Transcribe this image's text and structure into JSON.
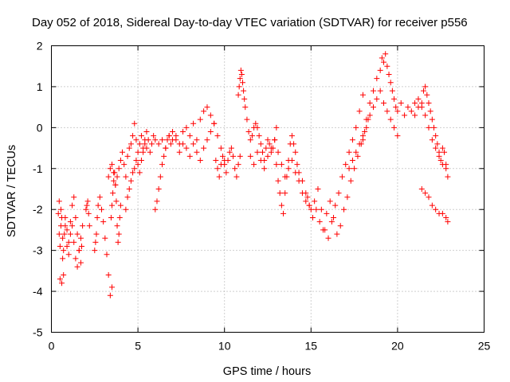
{
  "chart_data": {
    "type": "scatter",
    "title": "Day 052 of 2018, Sidereal Day-to-day VTEC variation (SDTVAR) for receiver p556",
    "xlabel": "GPS time / hours",
    "ylabel": "SDTVAR / TECUs",
    "xlim": [
      0,
      25
    ],
    "ylim": [
      -5,
      2
    ],
    "xticks": [
      "0",
      "5",
      "10",
      "15",
      "20",
      "25"
    ],
    "yticks": [
      "-5",
      "-4",
      "-3",
      "-2",
      "-1",
      "0",
      "1",
      "2"
    ],
    "grid": true,
    "marker": "plus",
    "marker_color": "#ff0000",
    "series": [
      {
        "name": "SDTVAR",
        "x": [
          0.4,
          0.45,
          0.5,
          0.55,
          0.6,
          0.65,
          0.7,
          0.75,
          0.8,
          0.9,
          1.0,
          1.1,
          1.2,
          1.3,
          1.4,
          1.5,
          1.6,
          1.7,
          1.75,
          1.8,
          0.5,
          0.6,
          0.7,
          0.8,
          0.9,
          1.0,
          1.1,
          1.2,
          1.3,
          1.4,
          1.5,
          1.6,
          1.7,
          0.45,
          0.55,
          0.65,
          2.0,
          2.05,
          2.1,
          2.15,
          2.2,
          2.5,
          2.55,
          2.6,
          2.65,
          2.7,
          2.8,
          2.9,
          3.0,
          3.1,
          3.2,
          3.3,
          3.4,
          3.5,
          3.45,
          3.5,
          3.55,
          3.6,
          3.65,
          3.7,
          3.75,
          3.8,
          3.85,
          3.9,
          3.95,
          4.0,
          3.3,
          3.4,
          3.5,
          3.6,
          3.7,
          3.8,
          3.9,
          4.0,
          4.1,
          4.2,
          4.3,
          4.4,
          4.5,
          4.6,
          4.7,
          4.8,
          4.9,
          5.0,
          5.1,
          5.2,
          5.3,
          5.4,
          5.5,
          4.3,
          4.4,
          4.5,
          4.6,
          4.7,
          4.8,
          4.9,
          5.0,
          5.1,
          5.2,
          5.3,
          5.4,
          5.5,
          5.6,
          5.7,
          5.8,
          5.9,
          6.0,
          6.0,
          6.1,
          6.2,
          6.3,
          6.4,
          6.5,
          6.6,
          6.7,
          6.8,
          6.9,
          7.0,
          7.2,
          7.4,
          7.6,
          7.8,
          8.0,
          8.2,
          8.4,
          8.6,
          8.8,
          9.0,
          9.2,
          9.4,
          9.6,
          9.8,
          10.0,
          6.2,
          6.4,
          6.6,
          6.8,
          7.0,
          7.2,
          7.4,
          7.6,
          7.8,
          8.0,
          8.2,
          8.4,
          8.6,
          8.8,
          9.0,
          9.2,
          9.4,
          9.5,
          9.6,
          9.7,
          9.8,
          9.9,
          10.0,
          10.1,
          10.2,
          10.3,
          10.4,
          10.5,
          10.6,
          10.7,
          10.8,
          10.9,
          10.8,
          10.85,
          10.9,
          10.95,
          11.0,
          11.05,
          11.1,
          11.15,
          11.2,
          11.3,
          11.4,
          11.5,
          11.6,
          11.7,
          11.8,
          11.9,
          12.0,
          12.1,
          12.2,
          12.3,
          12.4,
          12.5,
          12.6,
          12.7,
          12.8,
          12.9,
          13.0,
          11.5,
          11.7,
          11.9,
          12.1,
          12.3,
          12.5,
          12.7,
          12.9,
          13.1,
          13.3,
          13.5,
          13.7,
          13.9,
          14.1,
          14.3,
          14.5,
          14.7,
          14.9,
          13.0,
          13.1,
          13.2,
          13.3,
          13.4,
          13.5,
          13.6,
          13.7,
          13.8,
          13.9,
          14.0,
          14.1,
          14.2,
          14.3,
          14.5,
          14.7,
          14.9,
          15.1,
          15.3,
          15.5,
          15.7,
          15.9,
          16.1,
          16.3,
          16.5,
          16.7,
          16.9,
          17.1,
          17.3,
          17.5,
          17.7,
          17.9,
          18.1,
          18.3,
          14.8,
          15.0,
          15.2,
          15.4,
          15.6,
          15.8,
          16.0,
          16.2,
          16.4,
          16.6,
          16.8,
          17.0,
          17.2,
          17.4,
          17.6,
          17.8,
          18.0,
          17.2,
          17.4,
          17.6,
          17.8,
          18.0,
          18.2,
          18.4,
          18.6,
          18.8,
          19.0,
          19.2,
          19.4,
          19.6,
          19.8,
          20.0,
          18.0,
          18.2,
          18.4,
          18.6,
          18.8,
          19.0,
          19.1,
          19.2,
          19.3,
          19.4,
          19.5,
          19.6,
          19.7,
          19.8,
          19.9,
          20.0,
          20.2,
          20.4,
          20.6,
          20.8,
          21.0,
          21.2,
          21.4,
          21.6,
          21.8,
          22.0,
          22.2,
          22.4,
          22.6,
          22.8,
          22.9,
          21.0,
          21.2,
          21.4,
          21.5,
          21.6,
          21.7,
          21.8,
          21.9,
          22.0,
          22.1,
          22.2,
          22.3,
          22.4,
          22.5,
          22.6,
          22.7,
          22.8,
          21.4,
          21.6,
          21.8,
          22.0,
          22.2,
          22.4,
          22.6,
          22.8,
          22.9
        ],
        "y": [
          -2.1,
          -2.6,
          -2.9,
          -2.4,
          -2.2,
          -2.7,
          -3.0,
          -2.6,
          -2.2,
          -2.5,
          -2.8,
          -2.3,
          -1.9,
          -1.7,
          -2.2,
          -2.6,
          -3.0,
          -3.3,
          -2.9,
          -2.4,
          -3.7,
          -3.8,
          -3.6,
          -2.4,
          -2.9,
          -3.1,
          -2.6,
          -2.4,
          -2.8,
          -3.2,
          -3.4,
          -3.0,
          -2.7,
          -1.8,
          -2.0,
          -3.2,
          -2.0,
          -1.9,
          -1.8,
          -2.1,
          -2.4,
          -3.0,
          -2.8,
          -2.6,
          -2.2,
          -1.9,
          -1.7,
          -2.0,
          -2.3,
          -2.7,
          -3.1,
          -3.6,
          -4.1,
          -3.9,
          -2.2,
          -1.9,
          -1.6,
          -1.3,
          -1.1,
          -1.4,
          -1.8,
          -2.4,
          -2.8,
          -2.6,
          -2.2,
          -1.9,
          -1.2,
          -1.0,
          -0.9,
          -1.1,
          -1.4,
          -1.2,
          -1.0,
          -0.8,
          -0.6,
          -0.9,
          -1.2,
          -0.7,
          -0.5,
          -0.4,
          -0.2,
          0.1,
          -0.3,
          -0.6,
          -0.4,
          -0.2,
          -0.5,
          -0.3,
          -0.1,
          -2.0,
          -1.7,
          -1.5,
          -1.3,
          -1.1,
          -1.0,
          -0.8,
          -0.9,
          -1.1,
          -0.8,
          -0.6,
          -0.4,
          -0.5,
          -0.3,
          -0.6,
          -0.4,
          -0.2,
          -0.3,
          -2.0,
          -1.8,
          -1.5,
          -1.2,
          -0.9,
          -0.7,
          -0.5,
          -0.3,
          -0.2,
          -0.4,
          -0.3,
          -0.2,
          -0.4,
          -0.1,
          0.0,
          -0.2,
          0.1,
          -0.3,
          0.2,
          0.4,
          0.5,
          0.3,
          0.1,
          -0.2,
          -0.5,
          -0.8,
          -0.4,
          -0.3,
          -0.5,
          -0.2,
          -0.1,
          -0.3,
          -0.6,
          -0.4,
          -0.5,
          -0.7,
          -0.4,
          -0.6,
          -0.8,
          -0.5,
          -0.3,
          -0.1,
          0.1,
          -0.8,
          -1.0,
          -1.2,
          -0.9,
          -0.7,
          -0.9,
          -1.1,
          -0.8,
          -0.6,
          -0.5,
          -0.7,
          -1.0,
          -1.2,
          -0.9,
          -0.7,
          0.8,
          1.0,
          1.2,
          1.4,
          1.3,
          1.1,
          0.9,
          0.7,
          0.5,
          0.2,
          -0.1,
          -0.3,
          -0.2,
          0.0,
          0.1,
          0.0,
          -0.2,
          -0.4,
          -0.6,
          -0.8,
          -0.5,
          -0.3,
          -0.4,
          -0.6,
          -0.5,
          -0.3,
          0.0,
          -0.7,
          -0.9,
          -0.6,
          -0.8,
          -1.0,
          -0.7,
          -0.5,
          -0.3,
          -0.6,
          -0.9,
          -1.2,
          -1.0,
          -0.8,
          -1.1,
          -1.3,
          -1.6,
          -1.8,
          -1.9,
          -0.9,
          -1.3,
          -1.6,
          -1.9,
          -2.1,
          -1.6,
          -1.2,
          -0.8,
          -0.4,
          -0.2,
          -0.4,
          -0.6,
          -0.9,
          -1.1,
          -1.3,
          -1.6,
          -1.9,
          -2.2,
          -2.0,
          -2.3,
          -2.5,
          -2.1,
          -1.8,
          -2.2,
          -2.6,
          -2.4,
          -2.0,
          -1.7,
          -1.3,
          -1.0,
          -0.7,
          -0.4,
          -0.1,
          0.2,
          -1.7,
          -2.0,
          -1.8,
          -1.5,
          -2.0,
          -2.5,
          -2.7,
          -2.3,
          -1.9,
          -1.6,
          -1.2,
          -0.9,
          -0.6,
          -0.3,
          0.0,
          0.4,
          0.8,
          -1.0,
          -0.8,
          -0.6,
          -0.4,
          -0.2,
          0.0,
          0.3,
          0.5,
          0.7,
          0.9,
          0.6,
          0.4,
          0.2,
          0.0,
          -0.2,
          -0.3,
          0.2,
          0.6,
          0.9,
          1.2,
          1.4,
          1.7,
          1.6,
          1.8,
          1.5,
          1.3,
          1.1,
          0.9,
          0.7,
          0.5,
          0.4,
          0.6,
          0.3,
          0.5,
          0.4,
          0.6,
          0.7,
          0.5,
          0.3,
          0.0,
          -0.3,
          -0.5,
          -0.7,
          -0.9,
          -1.0,
          -1.2,
          0.3,
          0.5,
          0.6,
          0.9,
          1.0,
          0.8,
          0.6,
          0.4,
          0.2,
          0.0,
          -0.2,
          -0.4,
          -0.6,
          -0.8,
          -0.5,
          -0.6,
          -0.9,
          -1.5,
          -1.6,
          -1.7,
          -1.9,
          -2.0,
          -2.1,
          -2.1,
          -2.2,
          -2.3
        ]
      }
    ]
  }
}
